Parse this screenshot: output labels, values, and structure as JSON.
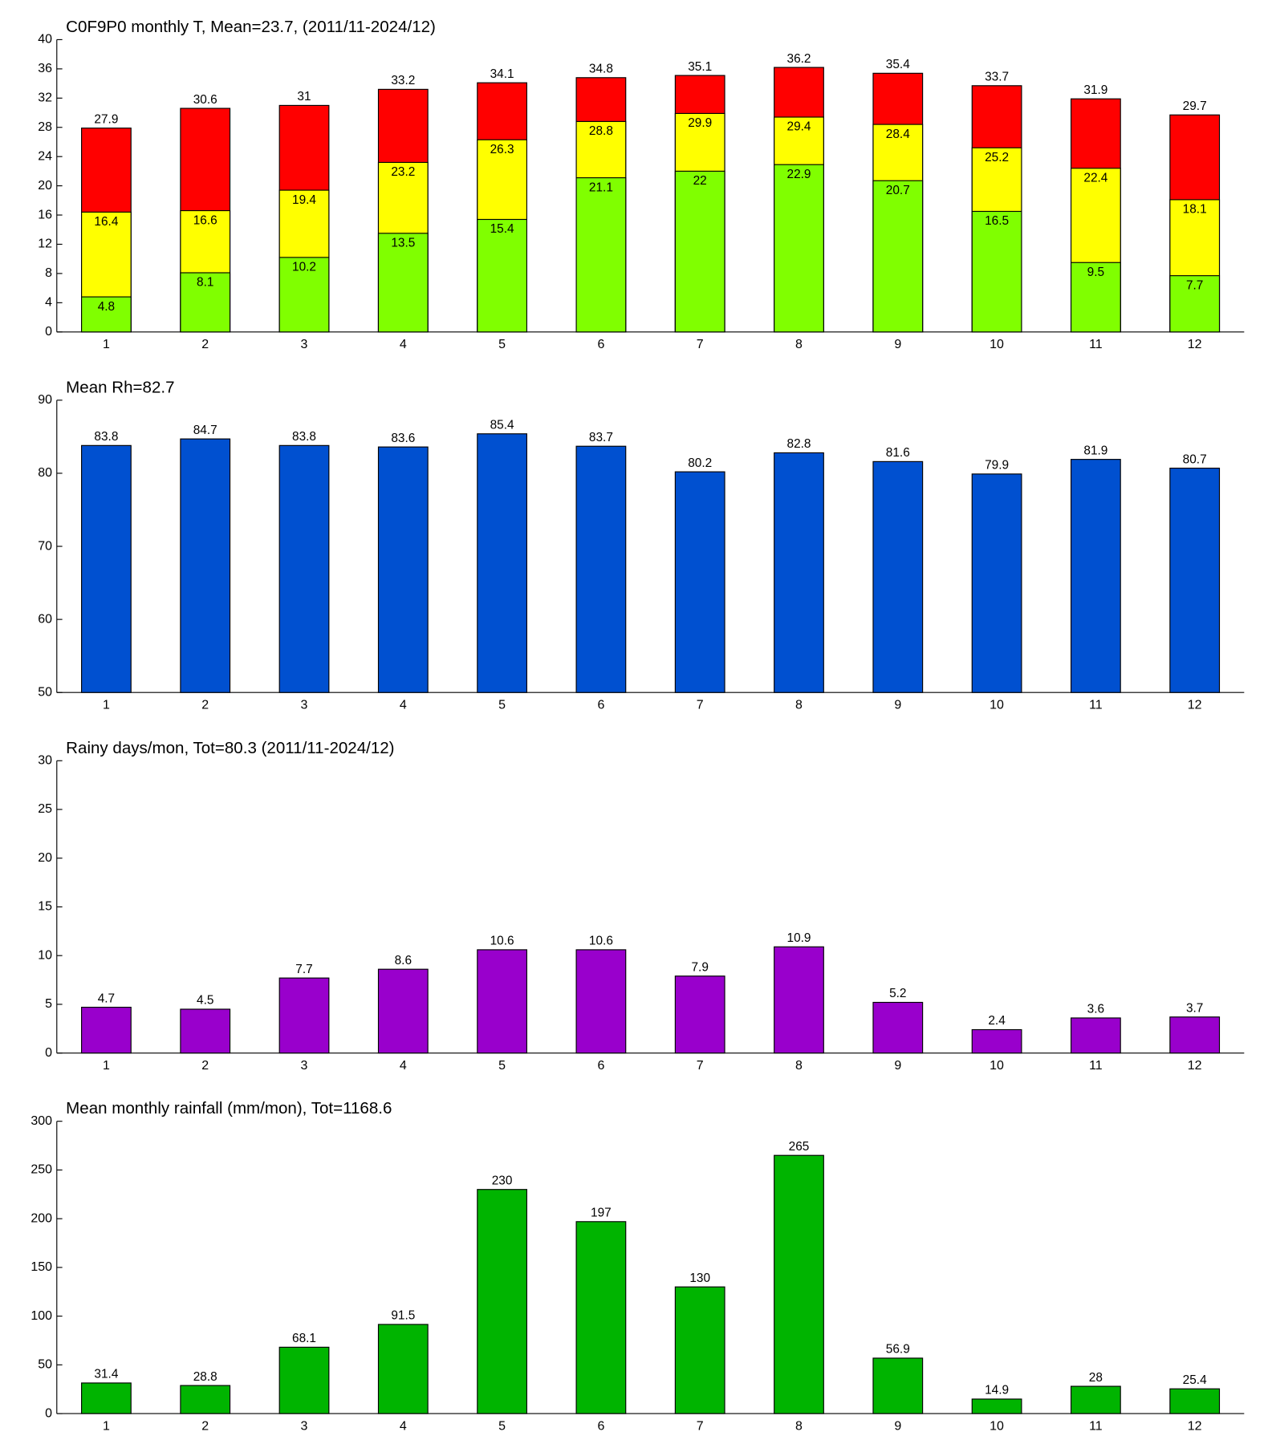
{
  "chart_data": [
    {
      "type": "bar",
      "title": "C0F9P0 monthly T, Mean=23.7, (2011/11-2024/12)",
      "categories": [
        "1",
        "2",
        "3",
        "4",
        "5",
        "6",
        "7",
        "8",
        "9",
        "10",
        "11",
        "12"
      ],
      "series": [
        {
          "color": "#ff0000",
          "values": [
            27.9,
            30.6,
            31,
            33.2,
            34.1,
            34.8,
            35.1,
            36.2,
            35.4,
            33.7,
            31.9,
            29.7
          ]
        },
        {
          "color": "#ffff00",
          "values": [
            16.4,
            16.6,
            19.4,
            23.2,
            26.3,
            28.8,
            29.9,
            29.4,
            28.4,
            25.2,
            22.4,
            18.1
          ]
        },
        {
          "color": "#80ff00",
          "values": [
            4.8,
            8.1,
            10.2,
            13.5,
            15.4,
            21.1,
            22,
            22.9,
            20.7,
            16.5,
            9.5,
            7.7
          ]
        }
      ],
      "ylim": [
        0,
        40
      ],
      "yticks": [
        0,
        4,
        8,
        12,
        16,
        20,
        24,
        28,
        32,
        36,
        40
      ],
      "grid": false
    },
    {
      "type": "bar",
      "title": "Mean Rh=82.7",
      "categories": [
        "1",
        "2",
        "3",
        "4",
        "5",
        "6",
        "7",
        "8",
        "9",
        "10",
        "11",
        "12"
      ],
      "series": [
        {
          "color": "#0050d0",
          "values": [
            83.8,
            84.7,
            83.8,
            83.6,
            85.4,
            83.7,
            80.2,
            82.8,
            81.6,
            79.9,
            81.9,
            80.7
          ]
        }
      ],
      "ylim": [
        50,
        90
      ],
      "yticks": [
        50,
        60,
        70,
        80,
        90
      ],
      "grid": false
    },
    {
      "type": "bar",
      "title": "Rainy days/mon, Tot=80.3 (2011/11-2024/12)",
      "categories": [
        "1",
        "2",
        "3",
        "4",
        "5",
        "6",
        "7",
        "8",
        "9",
        "10",
        "11",
        "12"
      ],
      "series": [
        {
          "color": "#9900cc",
          "values": [
            4.7,
            4.5,
            7.7,
            8.6,
            10.6,
            10.6,
            7.9,
            10.9,
            5.2,
            2.4,
            3.6,
            3.7
          ]
        }
      ],
      "ylim": [
        0,
        30
      ],
      "yticks": [
        0,
        5,
        10,
        15,
        20,
        25,
        30
      ],
      "grid": false
    },
    {
      "type": "bar",
      "title": "Mean monthly rainfall (mm/mon), Tot=1168.6",
      "categories": [
        "1",
        "2",
        "3",
        "4",
        "5",
        "6",
        "7",
        "8",
        "9",
        "10",
        "11",
        "12"
      ],
      "series": [
        {
          "color": "#00b400",
          "values": [
            31.4,
            28.8,
            68.1,
            91.5,
            230,
            197,
            130,
            265,
            56.9,
            14.9,
            28,
            25.4
          ]
        }
      ],
      "ylim": [
        0,
        300
      ],
      "yticks": [
        0,
        50,
        100,
        150,
        200,
        250,
        300
      ],
      "grid": false
    }
  ]
}
